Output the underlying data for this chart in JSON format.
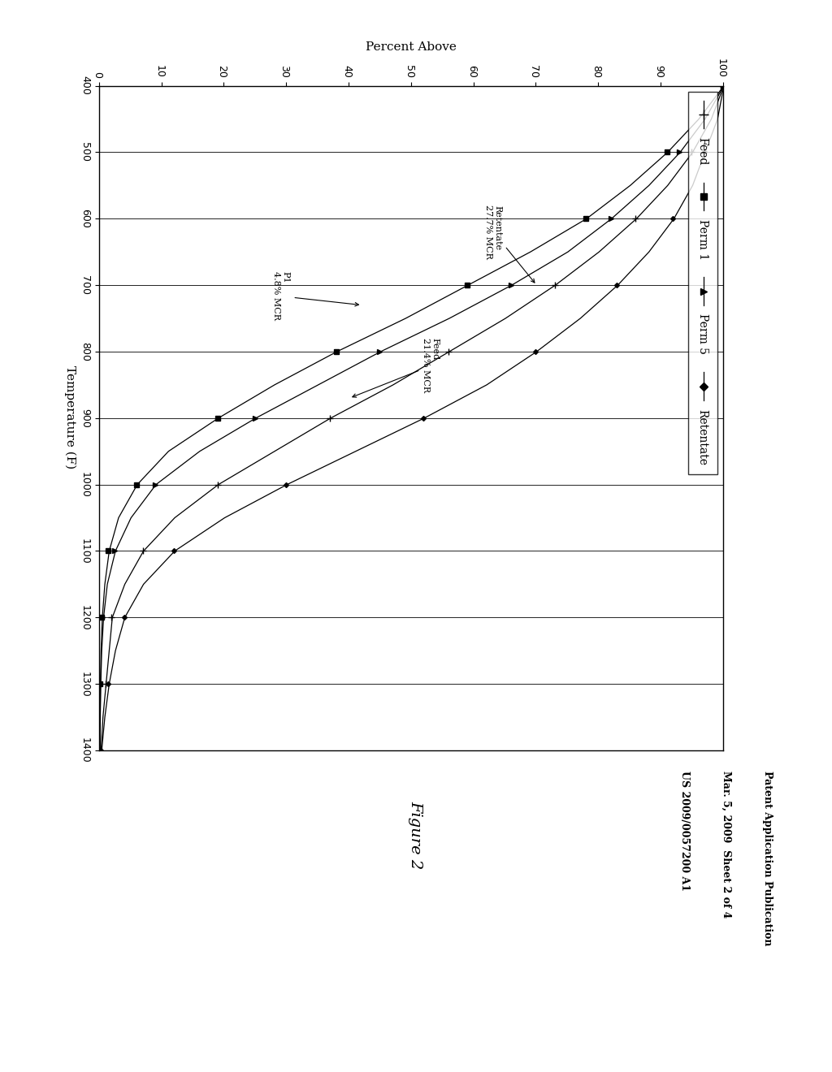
{
  "header_left": "Patent Application Publication",
  "header_mid": "Mar. 5, 2009  Sheet 2 of 4",
  "header_right": "US 2009/0057200 A1",
  "figure_label": "Figure 2",
  "temp_label": "Temperature (F)",
  "pct_label": "Percent Above",
  "temp_min": 400,
  "temp_max": 1400,
  "pct_min": 0,
  "pct_max": 100,
  "temp_ticks": [
    400,
    500,
    600,
    700,
    800,
    900,
    1000,
    1100,
    1200,
    1300,
    1400
  ],
  "pct_ticks": [
    0,
    10,
    20,
    30,
    40,
    50,
    60,
    70,
    80,
    90,
    100
  ],
  "background_color": "#ffffff",
  "legend_labels": [
    "Feed",
    "Perm 1",
    "Perm 5",
    "Retentate"
  ],
  "ann_feed": "Feed\n21.4% MCR",
  "ann_retentate": "Retentate\n27.7% MCR",
  "ann_p1": "P1\n4.8% MCR",
  "T_feed": [
    400,
    450,
    500,
    550,
    600,
    650,
    700,
    750,
    800,
    850,
    900,
    950,
    1000,
    1050,
    1100,
    1150,
    1200,
    1250,
    1300,
    1350,
    1400
  ],
  "y_feed": [
    100,
    98,
    95,
    91,
    86,
    80,
    73,
    65,
    56,
    47,
    37,
    28,
    19,
    12,
    7,
    4,
    2,
    1.5,
    1,
    0.5,
    0.2
  ],
  "T_perm1": [
    400,
    450,
    500,
    550,
    600,
    650,
    700,
    750,
    800,
    850,
    900,
    950,
    1000,
    1050,
    1100,
    1150,
    1200,
    1250,
    1300,
    1350,
    1400
  ],
  "y_perm1": [
    100,
    96,
    91,
    85,
    78,
    69,
    59,
    49,
    38,
    28,
    19,
    11,
    6,
    3,
    1.5,
    0.8,
    0.4,
    0.2,
    0.1,
    0.05,
    0.02
  ],
  "T_perm5": [
    400,
    450,
    500,
    550,
    600,
    650,
    700,
    750,
    800,
    850,
    900,
    950,
    1000,
    1050,
    1100,
    1150,
    1200,
    1250,
    1300,
    1350,
    1400
  ],
  "y_perm5": [
    100,
    97,
    93,
    88,
    82,
    75,
    66,
    56,
    45,
    35,
    25,
    16,
    9,
    5,
    2.5,
    1.2,
    0.6,
    0.3,
    0.15,
    0.07,
    0.03
  ],
  "T_retentate": [
    400,
    450,
    500,
    550,
    600,
    650,
    700,
    750,
    800,
    850,
    900,
    950,
    1000,
    1050,
    1100,
    1150,
    1200,
    1250,
    1300,
    1350,
    1400
  ],
  "y_retentate": [
    100,
    99,
    97,
    95,
    92,
    88,
    83,
    77,
    70,
    62,
    52,
    41,
    30,
    20,
    12,
    7,
    4,
    2.5,
    1.5,
    0.8,
    0.3
  ]
}
